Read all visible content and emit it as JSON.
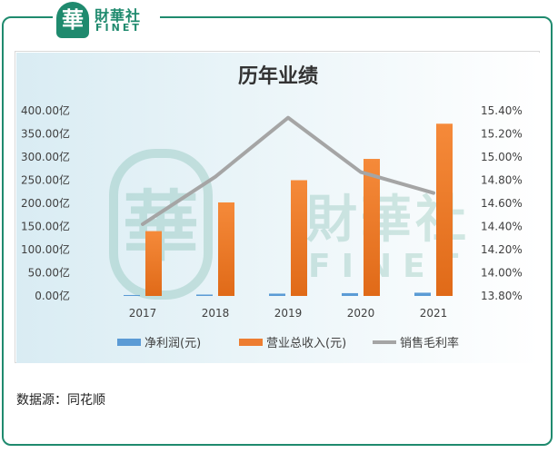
{
  "brand": {
    "badge_char": "華",
    "name_cn": "財華社",
    "name_en": "FINET",
    "watermark_cn": "財華社",
    "watermark_en": "FINET",
    "color": "#1f8a6e"
  },
  "source_text": "数据源：同花顺",
  "chart_data": {
    "type": "bar",
    "title": "历年业绩",
    "categories": [
      "2017",
      "2018",
      "2019",
      "2020",
      "2021"
    ],
    "series": [
      {
        "name": "净利润(元)",
        "type": "bar",
        "axis": "left",
        "color": "#5b9bd5",
        "values": [
          2,
          3,
          5,
          6,
          7
        ]
      },
      {
        "name": "营业总收入(元)",
        "type": "bar",
        "axis": "left",
        "color": "#ed7d31",
        "values": [
          140,
          202,
          250,
          296,
          372
        ]
      },
      {
        "name": "销售毛利率",
        "type": "line",
        "axis": "right",
        "color": "#a5a5a5",
        "values": [
          14.42,
          14.83,
          15.34,
          14.87,
          14.69
        ]
      }
    ],
    "left_axis": {
      "ylim": [
        0,
        400
      ],
      "ticks": [
        "400.00亿",
        "350.00亿",
        "300.00亿",
        "250.00亿",
        "200.00亿",
        "150.00亿",
        "100.00亿",
        "50.00亿",
        "0.00亿"
      ]
    },
    "right_axis": {
      "ylim": [
        13.8,
        15.4
      ],
      "ticks": [
        "15.40%",
        "15.20%",
        "15.00%",
        "14.80%",
        "14.60%",
        "14.40%",
        "14.20%",
        "14.00%",
        "13.80%"
      ]
    },
    "grid": false,
    "legend_position": "bottom"
  }
}
